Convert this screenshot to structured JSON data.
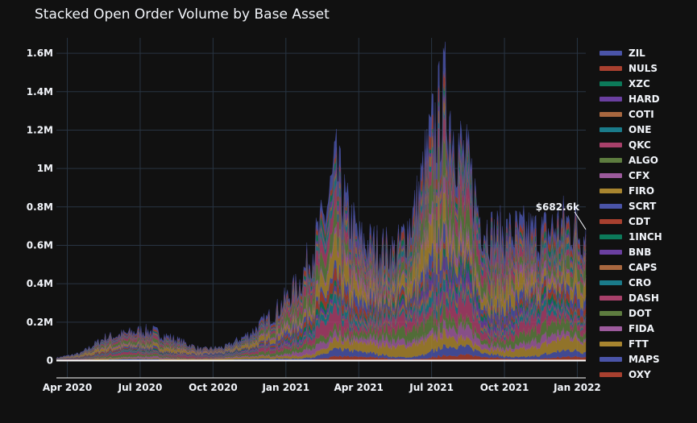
{
  "chart_data": {
    "type": "area",
    "title": "Stacked Open Order Volume by Base Asset",
    "xlabel": "",
    "ylabel": "",
    "x_ticks": [
      "Apr 2020",
      "Jul 2020",
      "Oct 2020",
      "Jan 2021",
      "Apr 2021",
      "Jul 2021",
      "Oct 2021",
      "Jan 2022"
    ],
    "y_ticks": [
      "0",
      "0.2M",
      "0.4M",
      "0.6M",
      "0.8M",
      "1M",
      "1.2M",
      "1.4M",
      "1.6M"
    ],
    "y_tick_values": [
      0,
      200000,
      400000,
      600000,
      800000,
      1000000,
      1200000,
      1400000,
      1600000
    ],
    "ylim": [
      -90000,
      1680000
    ],
    "x_range_months": [
      0,
      21.8
    ],
    "x_tick_months": [
      0.45,
      3.45,
      6.45,
      9.45,
      12.45,
      15.45,
      18.45,
      21.45
    ],
    "total_curve": {
      "month": [
        0,
        1,
        2,
        3,
        3.5,
        4,
        5,
        6,
        7,
        8,
        9,
        10,
        11,
        11.5,
        12,
        12.5,
        13,
        14,
        14.8,
        15.5,
        16,
        16.5,
        17,
        17.5,
        18,
        19,
        20,
        21,
        21.8
      ],
      "total": [
        15000,
        40000,
        125000,
        150000,
        165000,
        160000,
        110000,
        60000,
        75000,
        150000,
        265000,
        420000,
        760000,
        1050000,
        800000,
        650000,
        630000,
        590000,
        830000,
        1250000,
        1450000,
        1200000,
        1030000,
        760000,
        690000,
        700000,
        690000,
        760000,
        682600
      ]
    },
    "series": [
      {
        "name": "ZIL",
        "color": "#4a54a8",
        "share": 0.06
      },
      {
        "name": "NULS",
        "color": "#a8402f",
        "share": 0.04
      },
      {
        "name": "XZC",
        "color": "#0c7a5a",
        "share": 0.03
      },
      {
        "name": "HARD",
        "color": "#6a3fa0",
        "share": 0.03
      },
      {
        "name": "COTI",
        "color": "#a8673f",
        "share": 0.03
      },
      {
        "name": "ONE",
        "color": "#1a7b8a",
        "share": 0.03
      },
      {
        "name": "QKC",
        "color": "#a8406a",
        "share": 0.07
      },
      {
        "name": "ALGO",
        "color": "#5d7c3f",
        "share": 0.09
      },
      {
        "name": "CFX",
        "color": "#9c5a9c",
        "share": 0.04
      },
      {
        "name": "FIRO",
        "color": "#a8852f",
        "share": 0.09
      },
      {
        "name": "SCRT",
        "color": "#4a54a8",
        "share": 0.05
      },
      {
        "name": "CDT",
        "color": "#a8402f",
        "share": 0.04
      },
      {
        "name": "1INCH",
        "color": "#0c7a5a",
        "share": 0.03
      },
      {
        "name": "BNB",
        "color": "#6a3fa0",
        "share": 0.04
      },
      {
        "name": "CAPS",
        "color": "#a8673f",
        "share": 0.02
      },
      {
        "name": "CRO",
        "color": "#1a7b8a",
        "share": 0.03
      },
      {
        "name": "DASH",
        "color": "#a8406a",
        "share": 0.07
      },
      {
        "name": "DOT",
        "color": "#5d7c3f",
        "share": 0.06
      },
      {
        "name": "FIDA",
        "color": "#9c5a9c",
        "share": 0.04
      },
      {
        "name": "FTT",
        "color": "#a8852f",
        "share": 0.06
      },
      {
        "name": "MAPS",
        "color": "#4a54a8",
        "share": 0.03
      },
      {
        "name": "OXY",
        "color": "#a8402f",
        "share": 0.02
      }
    ],
    "annotations": [
      {
        "text": "$682.6k",
        "month": 21.8,
        "value": 682600
      }
    ],
    "legend_position": "right",
    "grid": true
  }
}
